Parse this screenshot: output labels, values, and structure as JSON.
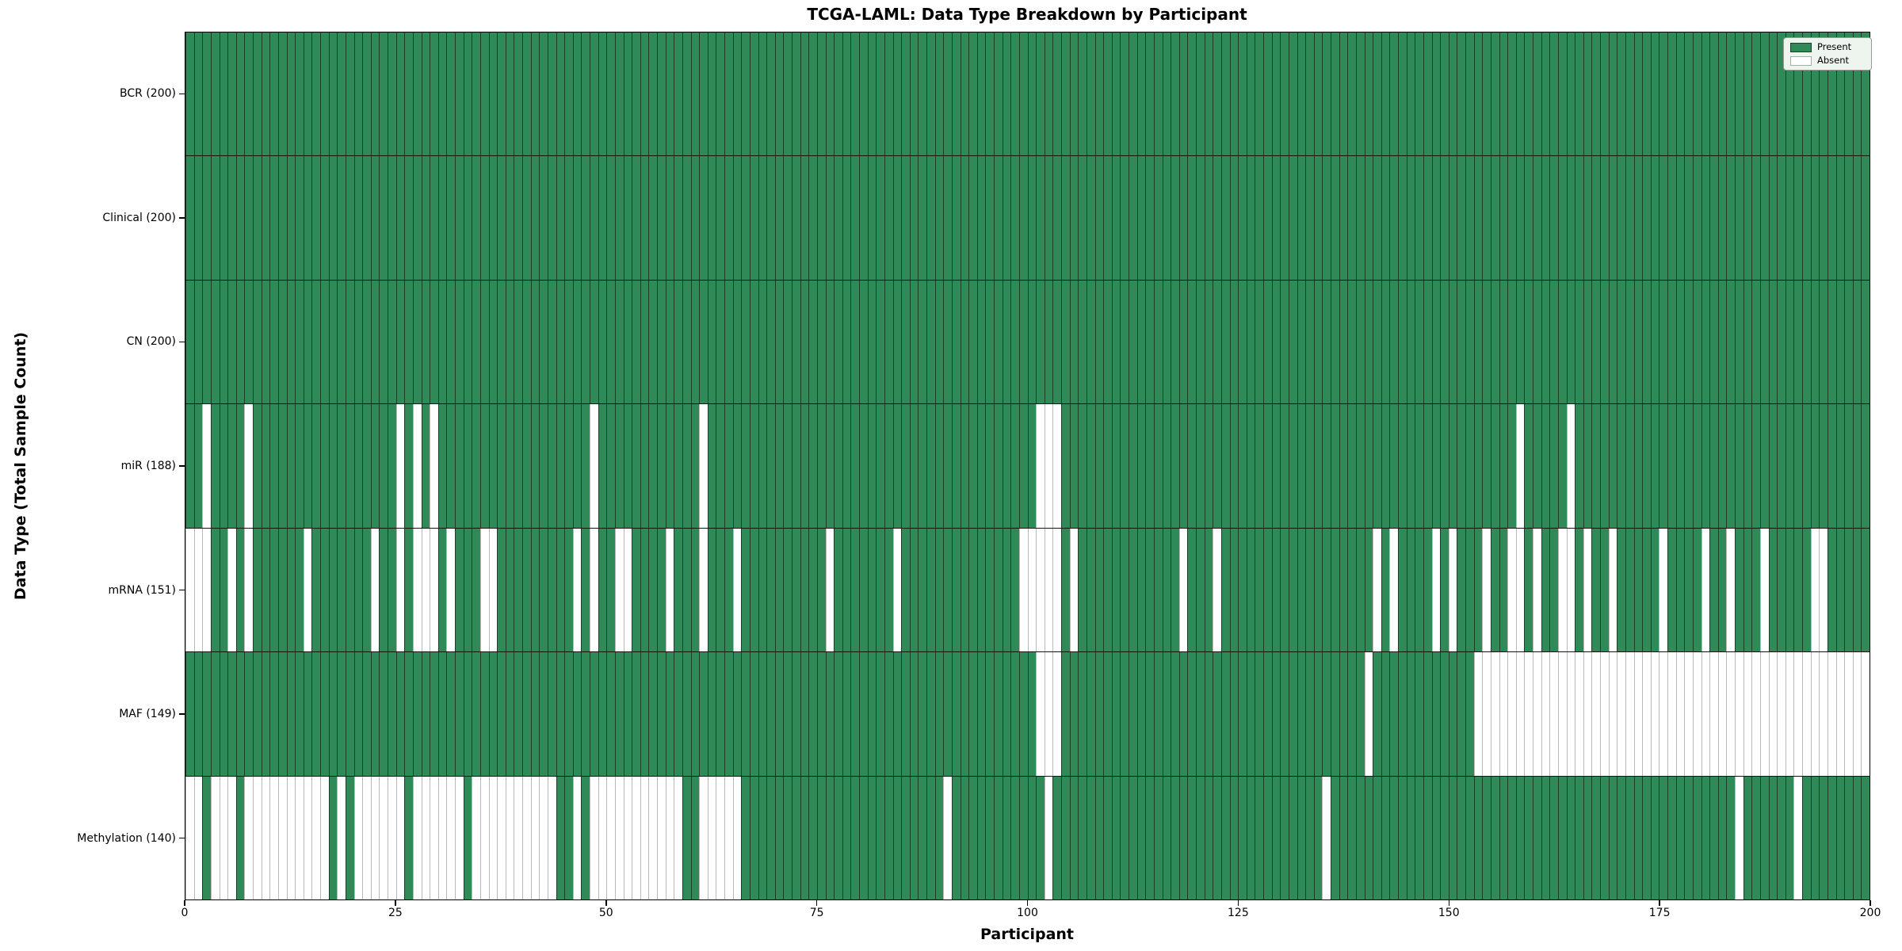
{
  "title": "TCGA-LAML: Data Type Breakdown by Participant",
  "colors": {
    "present": "#2f8a57",
    "present_edge": "#173f2a",
    "absent": "#ffffff",
    "absent_edge": "#b9b9b9",
    "separator": "#141414",
    "spine": "#000000",
    "legend_bg": "#eef4ee",
    "legend_border": "#999999"
  },
  "chart_data": {
    "type": "heatmap",
    "title": "TCGA-LAML: Data Type Breakdown by Participant",
    "xlabel": "Participant",
    "ylabel": "Data Type (Total Sample Count)",
    "x_range": [
      0,
      200
    ],
    "n_participants": 200,
    "x_ticks": [
      0,
      25,
      50,
      75,
      100,
      125,
      150,
      175,
      200
    ],
    "grid": false,
    "legend_position": "upper right",
    "legend_entries": [
      {
        "label": "Present",
        "type": "present"
      },
      {
        "label": "Absent",
        "type": "absent"
      }
    ],
    "cell_values": {
      "present": 1,
      "absent": 0
    },
    "rows": [
      {
        "label": "BCR (200)",
        "name": "BCR",
        "present_count": 200,
        "absent_participants": []
      },
      {
        "label": "Clinical (200)",
        "name": "Clinical",
        "present_count": 200,
        "absent_participants": []
      },
      {
        "label": "CN (200)",
        "name": "CN",
        "present_count": 200,
        "absent_participants": []
      },
      {
        "label": "miR (188)",
        "name": "miR",
        "present_count": 188,
        "absent_participants": [
          2,
          7,
          25,
          27,
          29,
          48,
          61,
          101,
          102,
          103,
          158,
          164
        ]
      },
      {
        "label": "mRNA (151)",
        "name": "mRNA",
        "present_count": 151,
        "absent_participants": [
          0,
          1,
          2,
          5,
          7,
          14,
          22,
          25,
          27,
          28,
          29,
          31,
          35,
          36,
          46,
          48,
          51,
          52,
          57,
          61,
          65,
          76,
          84,
          99,
          100,
          101,
          102,
          103,
          105,
          118,
          122,
          141,
          143,
          148,
          150,
          154,
          157,
          158,
          160,
          163,
          164,
          166,
          169,
          175,
          180,
          183,
          187,
          193,
          194
        ]
      },
      {
        "label": "MAF (149)",
        "name": "MAF",
        "present_count": 149,
        "absent_participants": [
          101,
          102,
          103,
          140,
          153,
          154,
          155,
          156,
          157,
          158,
          159,
          160,
          161,
          162,
          163,
          164,
          165,
          166,
          167,
          168,
          169,
          170,
          171,
          172,
          173,
          174,
          175,
          176,
          177,
          178,
          179,
          180,
          181,
          182,
          183,
          184,
          185,
          186,
          187,
          188,
          189,
          190,
          191,
          192,
          193,
          194,
          195,
          196,
          197,
          198,
          199
        ]
      },
      {
        "label": "Methylation (140)",
        "name": "Methylation",
        "present_count": 140,
        "absent_participants": [
          0,
          1,
          3,
          4,
          5,
          7,
          8,
          9,
          10,
          11,
          12,
          13,
          14,
          15,
          16,
          18,
          20,
          21,
          22,
          23,
          24,
          25,
          27,
          28,
          29,
          30,
          31,
          32,
          34,
          35,
          36,
          37,
          38,
          39,
          40,
          41,
          42,
          43,
          46,
          48,
          49,
          50,
          51,
          52,
          53,
          54,
          55,
          56,
          57,
          58,
          61,
          62,
          63,
          64,
          65,
          90,
          102,
          135,
          184,
          191
        ]
      }
    ]
  }
}
